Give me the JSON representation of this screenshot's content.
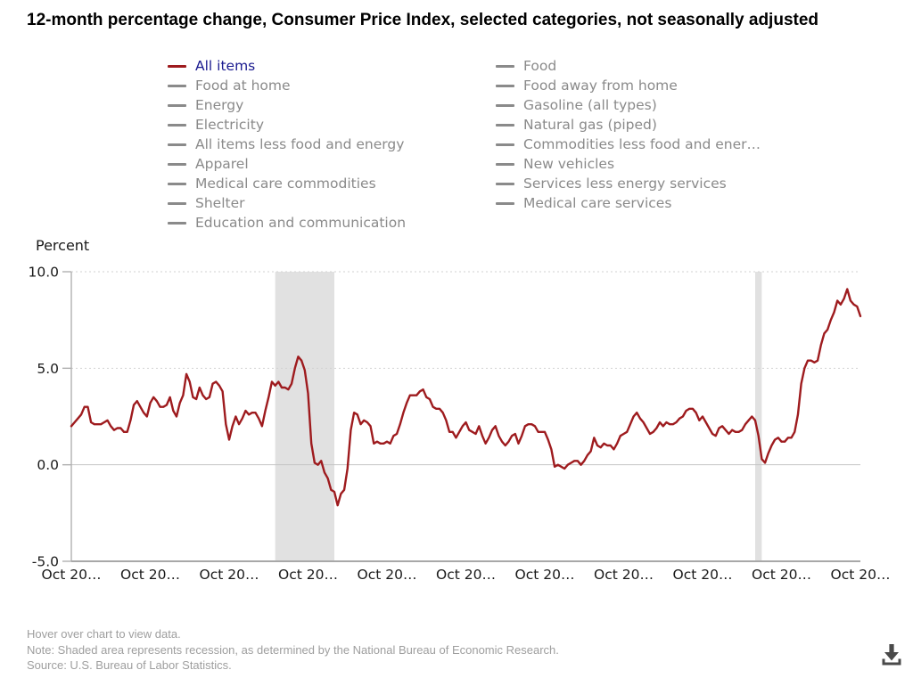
{
  "page": {
    "title": "12-month percentage change, Consumer Price Index, selected categories, not seasonally adjusted"
  },
  "legend": {
    "active_text_color": "#1a1a8f",
    "active_dash_color": "#9e1b1e",
    "inactive_color": "#8a8a8a",
    "columns": [
      {
        "items": [
          {
            "label": "All items",
            "active": true
          },
          {
            "label": "Food at home",
            "active": false
          },
          {
            "label": "Energy",
            "active": false
          },
          {
            "label": "Electricity",
            "active": false
          },
          {
            "label": "All items less food and energy",
            "active": false
          },
          {
            "label": "Apparel",
            "active": false
          },
          {
            "label": "Medical care commodities",
            "active": false
          },
          {
            "label": "Shelter",
            "active": false
          },
          {
            "label": "Education and communication",
            "active": false
          }
        ]
      },
      {
        "items": [
          {
            "label": "Food",
            "active": false
          },
          {
            "label": "Food away from home",
            "active": false
          },
          {
            "label": "Gasoline (all types)",
            "active": false
          },
          {
            "label": "Natural gas (piped)",
            "active": false
          },
          {
            "label": "Commodities less food and ener…",
            "active": false
          },
          {
            "label": "New vehicles",
            "active": false
          },
          {
            "label": "Services less energy services",
            "active": false
          },
          {
            "label": "Medical care services",
            "active": false
          }
        ]
      }
    ]
  },
  "chart_data": {
    "type": "line",
    "title": "12-month percentage change, Consumer Price Index, selected categories, not seasonally adjusted",
    "ylabel": "Percent",
    "xlabel": "",
    "ylim": [
      -5,
      10
    ],
    "y_ticks": [
      {
        "value": 10,
        "label": "10.0"
      },
      {
        "value": 5,
        "label": "5.0"
      },
      {
        "value": 0,
        "label": "0.0"
      },
      {
        "value": -5,
        "label": "-5.0"
      }
    ],
    "x_start": "2002-10",
    "x_end": "2022-10",
    "x_interval": "monthly",
    "x_tick_every_months": 24,
    "x_ticks": [
      "Oct 20…",
      "Oct 20…",
      "Oct 20…",
      "Oct 20…",
      "Oct 20…",
      "Oct 20…",
      "Oct 20…",
      "Oct 20…",
      "Oct 20…",
      "Oct 20…",
      "Oct 20…"
    ],
    "grid": "horizontal, dotted at 5 and 10, solid at 0",
    "legend_position": "top",
    "series": [
      {
        "name": "All items",
        "color": "#9e1b1e",
        "values": [
          2.0,
          2.2,
          2.4,
          2.6,
          3.0,
          3.0,
          2.2,
          2.1,
          2.1,
          2.1,
          2.2,
          2.3,
          2.0,
          1.8,
          1.9,
          1.9,
          1.7,
          1.7,
          2.3,
          3.1,
          3.3,
          3.0,
          2.7,
          2.5,
          3.2,
          3.5,
          3.3,
          3.0,
          3.0,
          3.1,
          3.5,
          2.8,
          2.5,
          3.2,
          3.6,
          4.7,
          4.3,
          3.5,
          3.4,
          4.0,
          3.6,
          3.4,
          3.5,
          4.2,
          4.3,
          4.1,
          3.8,
          2.1,
          1.3,
          2.0,
          2.5,
          2.1,
          2.4,
          2.8,
          2.6,
          2.7,
          2.7,
          2.4,
          2.0,
          2.8,
          3.5,
          4.3,
          4.1,
          4.3,
          4.0,
          4.0,
          3.9,
          4.2,
          5.0,
          5.6,
          5.4,
          4.9,
          3.7,
          1.1,
          0.1,
          0.0,
          0.2,
          -0.4,
          -0.7,
          -1.3,
          -1.4,
          -2.1,
          -1.5,
          -1.3,
          -0.2,
          1.8,
          2.7,
          2.6,
          2.1,
          2.3,
          2.2,
          2.0,
          1.1,
          1.2,
          1.1,
          1.1,
          1.2,
          1.1,
          1.5,
          1.6,
          2.1,
          2.7,
          3.2,
          3.6,
          3.6,
          3.6,
          3.8,
          3.9,
          3.5,
          3.4,
          3.0,
          2.9,
          2.9,
          2.7,
          2.3,
          1.7,
          1.7,
          1.4,
          1.7,
          2.0,
          2.2,
          1.8,
          1.7,
          1.6,
          2.0,
          1.5,
          1.1,
          1.4,
          1.8,
          2.0,
          1.5,
          1.2,
          1.0,
          1.2,
          1.5,
          1.6,
          1.1,
          1.5,
          2.0,
          2.1,
          2.1,
          2.0,
          1.7,
          1.7,
          1.7,
          1.3,
          0.8,
          -0.1,
          0.0,
          -0.1,
          -0.2,
          0.0,
          0.1,
          0.2,
          0.2,
          0.0,
          0.2,
          0.5,
          0.7,
          1.4,
          1.0,
          0.9,
          1.1,
          1.0,
          1.0,
          0.8,
          1.1,
          1.5,
          1.6,
          1.7,
          2.1,
          2.5,
          2.7,
          2.4,
          2.2,
          1.9,
          1.6,
          1.7,
          1.9,
          2.2,
          2.0,
          2.2,
          2.1,
          2.1,
          2.2,
          2.4,
          2.5,
          2.8,
          2.9,
          2.9,
          2.7,
          2.3,
          2.5,
          2.2,
          1.9,
          1.6,
          1.5,
          1.9,
          2.0,
          1.8,
          1.6,
          1.8,
          1.7,
          1.7,
          1.8,
          2.1,
          2.3,
          2.5,
          2.3,
          1.5,
          0.3,
          0.1,
          0.6,
          1.0,
          1.3,
          1.4,
          1.2,
          1.2,
          1.4,
          1.4,
          1.7,
          2.6,
          4.2,
          5.0,
          5.4,
          5.4,
          5.3,
          5.4,
          6.2,
          6.8,
          7.0,
          7.5,
          7.9,
          8.5,
          8.3,
          8.6,
          9.1,
          8.5,
          8.3,
          8.2,
          7.7
        ]
      }
    ],
    "recession_bands": [
      {
        "label": "recession Dec 2007 - Jun 2009",
        "start_month_index": 62,
        "end_month_index": 80
      },
      {
        "label": "recession Feb 2020 - Apr 2020",
        "start_month_index": 208,
        "end_month_index": 210
      }
    ],
    "recession_fill": "#e1e1e1"
  },
  "footer": {
    "lines": [
      "Hover over chart to view data.",
      "Note: Shaded area represents recession, as determined by the National Bureau of Economic Research.",
      "Source: U.S. Bureau of Labor Statistics."
    ]
  },
  "toolbar": {
    "download": "download-icon"
  }
}
